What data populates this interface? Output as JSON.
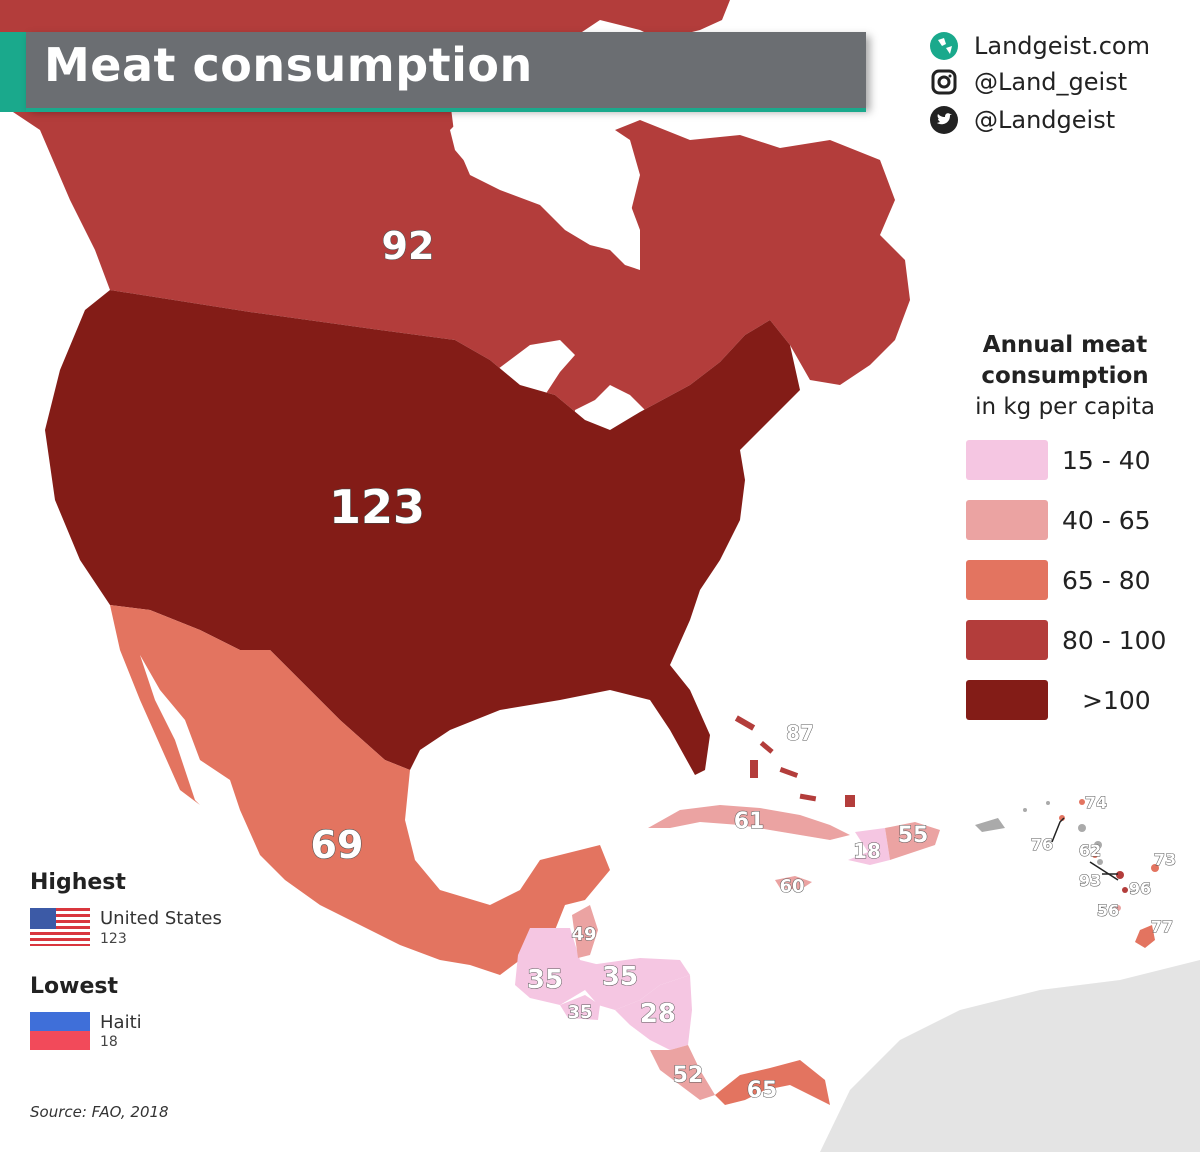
{
  "title": "Meat consumption",
  "social": {
    "website": "Landgeist.com",
    "instagram": "@Land_geist",
    "twitter": "@Landgeist"
  },
  "legend": {
    "title_line1": "Annual meat",
    "title_line2": "consumption",
    "subtitle": "in kg per capita",
    "bins": [
      {
        "label": "15  -  40",
        "color": "#f5c6e2"
      },
      {
        "label": "40  -  65",
        "color": "#eba3a2"
      },
      {
        "label": "65  -  80",
        "color": "#e37460"
      },
      {
        "label": "80  -  100",
        "color": "#b33d3b"
      },
      {
        "label": ">100",
        "color": "#831c17"
      }
    ]
  },
  "highest": {
    "heading": "Highest",
    "country": "United States",
    "value": "123"
  },
  "lowest": {
    "heading": "Lowest",
    "country": "Haiti",
    "value": "18"
  },
  "source": "Source: FAO, 2018",
  "regions": {
    "canada": "92",
    "usa": "123",
    "mexico": "69",
    "bahamas": "87",
    "cuba": "61",
    "haiti": "18",
    "dominican_republic": "55",
    "jamaica": "60",
    "belize": "49",
    "guatemala": "35",
    "honduras": "35",
    "el_salvador": "35",
    "nicaragua": "28",
    "costa_rica": "52",
    "panama": "65",
    "antigua": "74",
    "st_kitts": "76",
    "dominica": "62",
    "st_lucia": "93",
    "barbados": "73",
    "st_vincent": "96",
    "grenada": "56",
    "trinidad": "77"
  },
  "colors": {
    "bin1": "#f5c6e2",
    "bin2": "#eba3a2",
    "bin3": "#e37460",
    "bin4": "#b33d3b",
    "bin5": "#831c17",
    "no_data": "#e4e4e4",
    "accent": "#1aa98c",
    "title_bg": "#6b6e72"
  },
  "icons": {
    "website": "globe-icon",
    "instagram": "instagram-icon",
    "twitter": "twitter-icon"
  }
}
